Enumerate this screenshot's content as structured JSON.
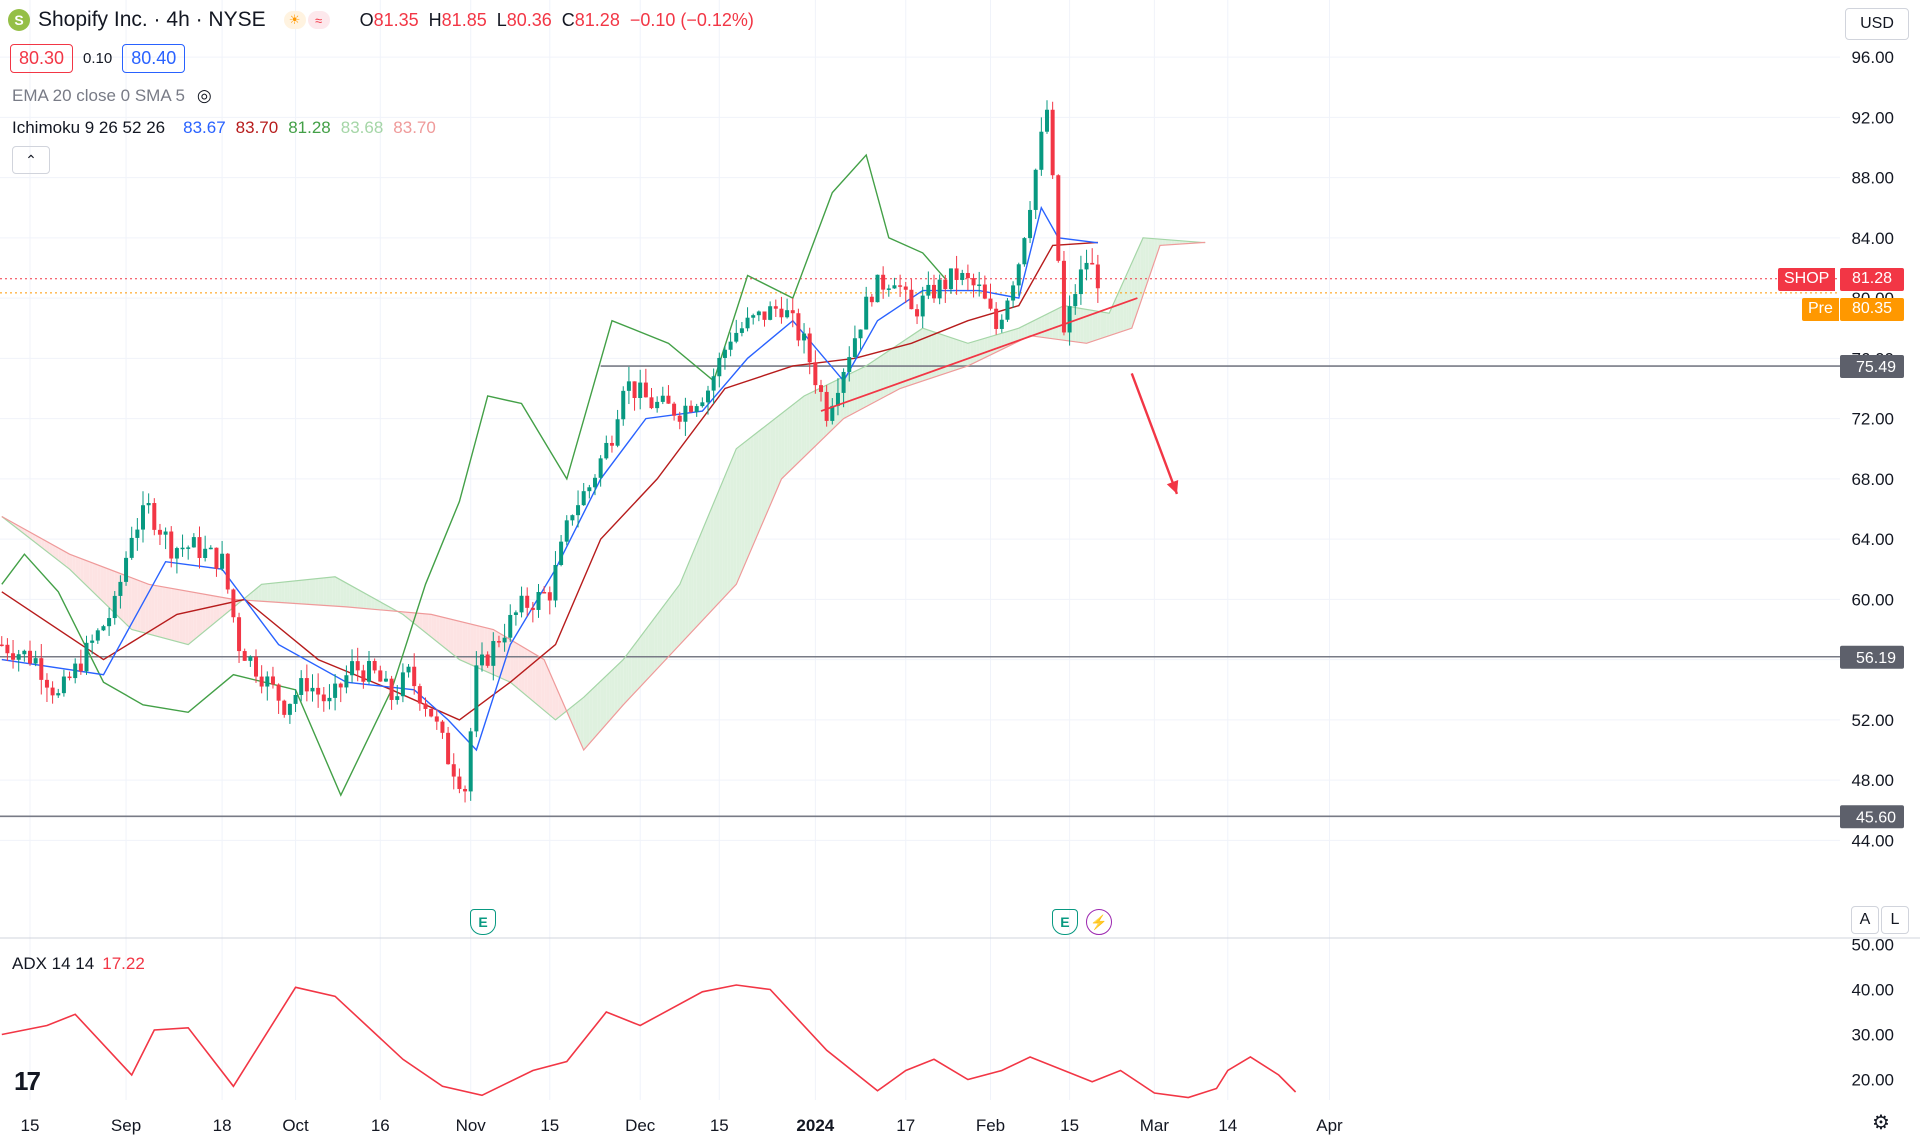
{
  "header": {
    "symbol_title": "Shopify Inc. · 4h · NYSE",
    "logo_letter": "S",
    "ohlc": [
      {
        "k": "O",
        "v": "81.35"
      },
      {
        "k": "H",
        "v": "81.85"
      },
      {
        "k": "L",
        "v": "80.36"
      },
      {
        "k": "C",
        "v": "81.28"
      },
      {
        "k": "",
        "v": "−0.10 (−0.12%)"
      }
    ],
    "bid": "80.30",
    "spread": "0.10",
    "ask": "80.40",
    "currency": "USD"
  },
  "indicators": {
    "ema_sma": "EMA 20 close 0 SMA 5",
    "ichimoku_label": "Ichimoku 9 26 52 26",
    "ichimoku_values": [
      {
        "v": "83.67",
        "color": "#2962ff"
      },
      {
        "v": "83.70",
        "color": "#b71c1c"
      },
      {
        "v": "81.28",
        "color": "#43a047"
      },
      {
        "v": "83.68",
        "color": "#a5d6a7"
      },
      {
        "v": "83.70",
        "color": "#ef9a9a"
      }
    ],
    "adx_label": "ADX 14 14",
    "adx_value": "17.22"
  },
  "price_tags": {
    "last_symbol": "SHOP",
    "last_value": "81.28",
    "pre_label": "Pre",
    "pre_value": "80.35"
  },
  "buttons": {
    "auto": "A",
    "log": "L"
  },
  "colors": {
    "up": "#089981",
    "down": "#f23645",
    "tenkan": "#2962ff",
    "kijun": "#b71c1c",
    "chikou": "#43a047",
    "annotation": "#f23645",
    "adx": "#f23645",
    "pre": "#ff9800"
  },
  "events": [
    {
      "x_label": "Nov",
      "icon": "earnings-icon",
      "glyph": "E"
    },
    {
      "x_label": "Feb 15",
      "icon": "earnings-icon",
      "glyph": "E"
    },
    {
      "x_label": "Feb 15",
      "icon": "dividend-split-icon",
      "glyph": "⚡"
    }
  ],
  "chart_data": {
    "type": "candlestick",
    "timeframe": "4h",
    "y_ticks": [
      "96.00",
      "92.00",
      "88.00",
      "84.00",
      "80.00",
      "76.00",
      "72.00",
      "68.00",
      "64.00",
      "60.00",
      "56.00",
      "52.00",
      "48.00",
      "44.00"
    ],
    "ylim": [
      42.3,
      97.0
    ],
    "x_ticks": [
      "15",
      "Sep",
      "18",
      "Oct",
      "16",
      "Nov",
      "15",
      "Dec",
      "15",
      "2024",
      "17",
      "Feb",
      "15",
      "Mar",
      "14",
      "Apr"
    ],
    "x_tick_dates": [
      "2023-08-15",
      "2023-09-01",
      "2023-09-18",
      "2023-10-01",
      "2023-10-16",
      "2023-11-01",
      "2023-11-15",
      "2023-12-01",
      "2023-12-15",
      "2024-01-01",
      "2024-01-17",
      "2024-02-01",
      "2024-02-15",
      "2024-03-01",
      "2024-03-14",
      "2024-04-01"
    ],
    "horizontal_levels": [
      75.49,
      56.19,
      45.6
    ],
    "last_price": 81.28,
    "pre_price": 80.35,
    "price_path": [
      [
        "2023-08-10",
        57.0
      ],
      [
        "2023-08-16",
        56.0
      ],
      [
        "2023-08-20",
        53.5
      ],
      [
        "2023-08-25",
        56.5
      ],
      [
        "2023-08-30",
        59.5
      ],
      [
        "2023-09-02",
        64.5
      ],
      [
        "2023-09-05",
        66.0
      ],
      [
        "2023-09-09",
        63.5
      ],
      [
        "2023-09-13",
        63.5
      ],
      [
        "2023-09-18",
        62.5
      ],
      [
        "2023-09-21",
        57.0
      ],
      [
        "2023-09-25",
        55.0
      ],
      [
        "2023-09-29",
        53.0
      ],
      [
        "2023-10-03",
        54.5
      ],
      [
        "2023-10-07",
        53.0
      ],
      [
        "2023-10-11",
        55.5
      ],
      [
        "2023-10-15",
        55.0
      ],
      [
        "2023-10-18",
        53.5
      ],
      [
        "2023-10-21",
        55.0
      ],
      [
        "2023-10-25",
        52.5
      ],
      [
        "2023-10-28",
        49.5
      ],
      [
        "2023-10-31",
        47.5
      ],
      [
        "2023-11-02",
        55.0
      ],
      [
        "2023-11-06",
        57.5
      ],
      [
        "2023-11-10",
        59.5
      ],
      [
        "2023-11-15",
        60.5
      ],
      [
        "2023-11-19",
        66.0
      ],
      [
        "2023-11-22",
        67.5
      ],
      [
        "2023-11-26",
        71.0
      ],
      [
        "2023-11-28",
        74.5
      ],
      [
        "2023-12-03",
        73.0
      ],
      [
        "2023-12-08",
        72.5
      ],
      [
        "2023-12-13",
        74.0
      ],
      [
        "2023-12-17",
        77.5
      ],
      [
        "2023-12-21",
        78.5
      ],
      [
        "2023-12-26",
        79.5
      ],
      [
        "2023-12-30",
        77.0
      ],
      [
        "2024-01-03",
        72.5
      ],
      [
        "2024-01-07",
        76.5
      ],
      [
        "2024-01-11",
        80.5
      ],
      [
        "2024-01-15",
        81.5
      ],
      [
        "2024-01-18",
        79.0
      ],
      [
        "2024-01-22",
        80.5
      ],
      [
        "2024-01-26",
        81.5
      ],
      [
        "2024-01-30",
        80.5
      ],
      [
        "2024-02-02",
        78.0
      ],
      [
        "2024-02-06",
        82.5
      ],
      [
        "2024-02-09",
        88.5
      ],
      [
        "2024-02-11",
        92.5
      ],
      [
        "2024-02-14",
        77.5
      ],
      [
        "2024-02-16",
        80.5
      ],
      [
        "2024-02-18",
        82.5
      ],
      [
        "2024-02-20",
        81.3
      ]
    ],
    "ichimoku": {
      "tenkan": [
        [
          "2023-08-10",
          56.0
        ],
        [
          "2023-08-28",
          55.0
        ],
        [
          "2023-09-08",
          62.5
        ],
        [
          "2023-09-18",
          62.0
        ],
        [
          "2023-09-28",
          57.0
        ],
        [
          "2023-10-10",
          54.5
        ],
        [
          "2023-10-22",
          54.0
        ],
        [
          "2023-10-28",
          52.0
        ],
        [
          "2023-11-02",
          50.0
        ],
        [
          "2023-11-08",
          57.0
        ],
        [
          "2023-11-16",
          62.0
        ],
        [
          "2023-11-24",
          68.0
        ],
        [
          "2023-12-02",
          72.0
        ],
        [
          "2023-12-12",
          72.5
        ],
        [
          "2023-12-20",
          76.0
        ],
        [
          "2023-12-28",
          78.5
        ],
        [
          "2024-01-06",
          74.5
        ],
        [
          "2024-01-12",
          78.5
        ],
        [
          "2024-01-20",
          80.5
        ],
        [
          "2024-01-30",
          80.5
        ],
        [
          "2024-02-06",
          80.0
        ],
        [
          "2024-02-10",
          86.0
        ],
        [
          "2024-02-13",
          84.0
        ],
        [
          "2024-02-20",
          83.67
        ]
      ],
      "kijun": [
        [
          "2023-08-10",
          60.5
        ],
        [
          "2023-08-28",
          56.0
        ],
        [
          "2023-09-10",
          59.0
        ],
        [
          "2023-09-22",
          60.0
        ],
        [
          "2023-10-05",
          56.0
        ],
        [
          "2023-10-18",
          54.0
        ],
        [
          "2023-10-30",
          52.0
        ],
        [
          "2023-11-08",
          54.5
        ],
        [
          "2023-11-16",
          57.0
        ],
        [
          "2023-11-24",
          64.0
        ],
        [
          "2023-12-04",
          68.0
        ],
        [
          "2023-12-16",
          74.0
        ],
        [
          "2023-12-28",
          75.5
        ],
        [
          "2024-01-08",
          76.0
        ],
        [
          "2024-01-18",
          77.0
        ],
        [
          "2024-01-28",
          78.5
        ],
        [
          "2024-02-06",
          79.5
        ],
        [
          "2024-02-12",
          83.5
        ],
        [
          "2024-02-20",
          83.7
        ]
      ],
      "chikou": [
        [
          "2023-08-10",
          61.0
        ],
        [
          "2023-08-14",
          63.0
        ],
        [
          "2023-08-20",
          60.5
        ],
        [
          "2023-08-28",
          54.5
        ],
        [
          "2023-09-04",
          53.0
        ],
        [
          "2023-09-12",
          52.5
        ],
        [
          "2023-09-20",
          55.0
        ],
        [
          "2023-10-01",
          54.0
        ],
        [
          "2023-10-09",
          47.0
        ],
        [
          "2023-10-18",
          54.0
        ],
        [
          "2023-10-24",
          61.0
        ],
        [
          "2023-10-30",
          66.5
        ],
        [
          "2023-11-04",
          73.5
        ],
        [
          "2023-11-10",
          73.0
        ],
        [
          "2023-11-18",
          68.0
        ],
        [
          "2023-11-26",
          78.5
        ],
        [
          "2023-12-06",
          77.0
        ],
        [
          "2023-12-14",
          74.5
        ],
        [
          "2023-12-20",
          81.5
        ],
        [
          "2023-12-28",
          80.0
        ],
        [
          "2024-01-04",
          87.0
        ],
        [
          "2024-01-10",
          89.5
        ],
        [
          "2024-01-14",
          84.0
        ],
        [
          "2024-01-20",
          83.0
        ],
        [
          "2024-01-24",
          81.28
        ]
      ],
      "senkou_a": [
        [
          "2023-08-10",
          65.5
        ],
        [
          "2023-08-22",
          62.0
        ],
        [
          "2023-09-02",
          58.0
        ],
        [
          "2023-09-12",
          57.0
        ],
        [
          "2023-09-25",
          61.0
        ],
        [
          "2023-10-08",
          61.5
        ],
        [
          "2023-10-20",
          59.0
        ],
        [
          "2023-10-30",
          56.0
        ],
        [
          "2023-11-08",
          54.5
        ],
        [
          "2023-11-16",
          52.0
        ],
        [
          "2023-11-21",
          53.5
        ],
        [
          "2023-11-28",
          56.0
        ],
        [
          "2023-12-08",
          61.0
        ],
        [
          "2023-12-18",
          70.0
        ],
        [
          "2023-12-30",
          73.5
        ],
        [
          "2024-01-10",
          75.5
        ],
        [
          "2024-01-20",
          78.0
        ],
        [
          "2024-01-28",
          77.0
        ],
        [
          "2024-02-06",
          78.0
        ],
        [
          "2024-02-14",
          79.5
        ],
        [
          "2024-02-22",
          79.0
        ],
        [
          "2024-02-28",
          84.0
        ],
        [
          "2024-03-10",
          83.68
        ]
      ],
      "senkou_b": [
        [
          "2023-08-10",
          65.5
        ],
        [
          "2023-08-22",
          63.0
        ],
        [
          "2023-09-05",
          61.0
        ],
        [
          "2023-09-20",
          60.0
        ],
        [
          "2023-10-10",
          59.5
        ],
        [
          "2023-10-25",
          59.0
        ],
        [
          "2023-11-05",
          58.0
        ],
        [
          "2023-11-14",
          56.0
        ],
        [
          "2023-11-21",
          50.0
        ],
        [
          "2023-11-28",
          53.0
        ],
        [
          "2023-12-08",
          57.0
        ],
        [
          "2023-12-18",
          61.0
        ],
        [
          "2023-12-26",
          68.0
        ],
        [
          "2024-01-06",
          72.0
        ],
        [
          "2024-01-16",
          74.0
        ],
        [
          "2024-01-28",
          75.5
        ],
        [
          "2024-02-08",
          77.5
        ],
        [
          "2024-02-18",
          77.0
        ],
        [
          "2024-02-26",
          78.0
        ],
        [
          "2024-03-02",
          83.5
        ],
        [
          "2024-03-10",
          83.7
        ]
      ]
    },
    "trendline": [
      [
        "2024-01-02",
        72.5
      ],
      [
        "2024-02-27",
        80.0
      ]
    ],
    "arrow": [
      [
        "2024-02-26",
        75.0
      ],
      [
        "2024-03-05",
        67.0
      ]
    ],
    "adx": {
      "label": "ADX 14 14",
      "ylim": [
        15.0,
        51.0
      ],
      "y_ticks": [
        "50.00",
        "40.00",
        "30.00",
        "20.00"
      ],
      "values": [
        [
          "2023-08-10",
          30.0
        ],
        [
          "2023-08-18",
          32.0
        ],
        [
          "2023-08-23",
          34.5
        ],
        [
          "2023-09-02",
          21.0
        ],
        [
          "2023-09-06",
          31.0
        ],
        [
          "2023-09-12",
          31.5
        ],
        [
          "2023-09-20",
          18.5
        ],
        [
          "2023-10-01",
          40.5
        ],
        [
          "2023-10-08",
          38.5
        ],
        [
          "2023-10-20",
          24.5
        ],
        [
          "2023-10-27",
          18.5
        ],
        [
          "2023-11-03",
          16.5
        ],
        [
          "2023-11-12",
          22.0
        ],
        [
          "2023-11-18",
          24.0
        ],
        [
          "2023-11-25",
          35.0
        ],
        [
          "2023-12-01",
          32.0
        ],
        [
          "2023-12-12",
          39.5
        ],
        [
          "2023-12-18",
          41.0
        ],
        [
          "2023-12-24",
          40.0
        ],
        [
          "2024-01-03",
          26.5
        ],
        [
          "2024-01-12",
          17.5
        ],
        [
          "2024-01-17",
          22.0
        ],
        [
          "2024-01-22",
          24.5
        ],
        [
          "2024-01-28",
          20.0
        ],
        [
          "2024-02-03",
          22.0
        ],
        [
          "2024-02-08",
          25.0
        ],
        [
          "2024-02-14",
          22.0
        ],
        [
          "2024-02-19",
          19.5
        ],
        [
          "2024-02-24",
          22.0
        ],
        [
          "2024-03-01",
          17.0
        ],
        [
          "2024-03-07",
          16.0
        ],
        [
          "2024-03-12",
          18.0
        ],
        [
          "2024-03-14",
          22.0
        ],
        [
          "2024-03-18",
          25.0
        ],
        [
          "2024-03-23",
          21.0
        ],
        [
          "2024-03-26",
          17.22
        ]
      ]
    }
  }
}
